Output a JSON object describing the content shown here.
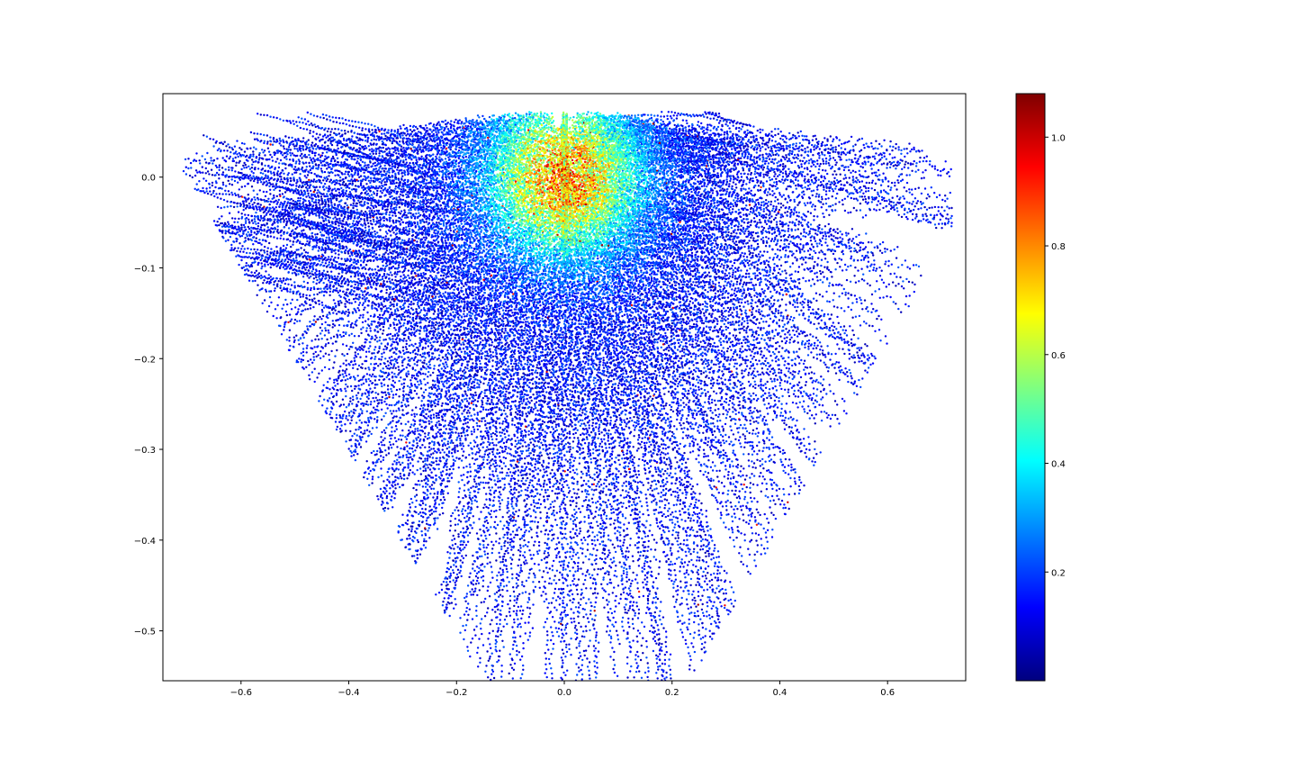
{
  "chart_data": {
    "type": "scatter",
    "title": "",
    "xlabel": "",
    "ylabel": "",
    "xlim": [
      -0.745,
      0.745
    ],
    "ylim": [
      -0.555,
      0.092
    ],
    "x_ticks": [
      -0.6,
      -0.4,
      -0.2,
      0.0,
      0.2,
      0.4,
      0.6
    ],
    "x_tick_labels": [
      "−0.6",
      "−0.4",
      "−0.2",
      "0.0",
      "0.2",
      "0.4",
      "0.6"
    ],
    "y_ticks": [
      0.0,
      -0.1,
      -0.2,
      -0.3,
      -0.4,
      -0.5
    ],
    "y_tick_labels": [
      "0.0",
      "−0.1",
      "−0.2",
      "−0.3",
      "−0.4",
      "−0.5"
    ],
    "grid": false,
    "point_cloud": {
      "description": "dense radial streaks of small markers fanning downward from near (0, 0.07); colored by value",
      "apex": [
        0.0,
        0.072
      ],
      "x_extent": [
        -0.72,
        0.72
      ],
      "y_extent": [
        -0.555,
        0.072
      ],
      "left_edge_line": [
        [
          -0.72,
          0.02
        ],
        [
          -0.15,
          -0.555
        ]
      ],
      "right_edge_line": [
        [
          0.72,
          -0.06
        ],
        [
          0.27,
          -0.52
        ]
      ],
      "value_range_typical": [
        0.05,
        0.35
      ],
      "hot_region_center": [
        0.0,
        0.0
      ],
      "hot_region_value": 0.8
    },
    "colorbar": {
      "colormap": "jet",
      "vmin": 0.0,
      "vmax": 1.08,
      "ticks": [
        0.2,
        0.4,
        0.6,
        0.8,
        1.0
      ],
      "tick_labels": [
        "0.2",
        "0.4",
        "0.6",
        "0.8",
        "1.0"
      ],
      "placement": "right"
    }
  }
}
